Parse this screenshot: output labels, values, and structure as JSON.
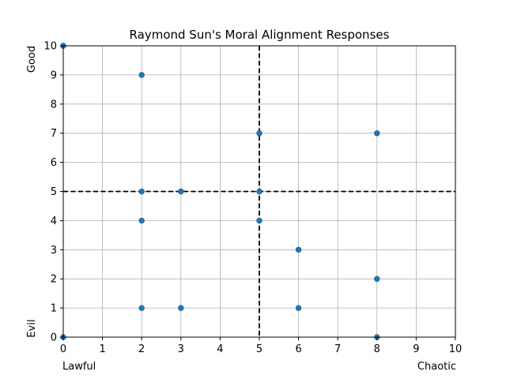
{
  "chart_data": {
    "type": "scatter",
    "title": "Raymond Sun's Moral Alignment Responses",
    "xlabel_left": "Lawful",
    "xlabel_right": "Chaotic",
    "ylabel_top": "Good",
    "ylabel_bottom": "Evil",
    "xlim": [
      0,
      10
    ],
    "ylim": [
      0,
      10
    ],
    "xticks": [
      "0",
      "1",
      "2",
      "3",
      "4",
      "5",
      "6",
      "7",
      "8",
      "9",
      "10"
    ],
    "yticks": [
      "0",
      "1",
      "2",
      "3",
      "4",
      "5",
      "6",
      "7",
      "8",
      "9",
      "10"
    ],
    "grid": true,
    "reference_lines": {
      "x": 5,
      "y": 5,
      "style": "dashed",
      "color": "#000000"
    },
    "marker_color": "#1f77b4",
    "points": [
      {
        "x": 0,
        "y": 10
      },
      {
        "x": 2,
        "y": 9
      },
      {
        "x": 5,
        "y": 7
      },
      {
        "x": 8,
        "y": 7
      },
      {
        "x": 2,
        "y": 5
      },
      {
        "x": 3,
        "y": 5
      },
      {
        "x": 5,
        "y": 5
      },
      {
        "x": 2,
        "y": 4
      },
      {
        "x": 5,
        "y": 4
      },
      {
        "x": 6,
        "y": 3
      },
      {
        "x": 8,
        "y": 2
      },
      {
        "x": 2,
        "y": 1
      },
      {
        "x": 3,
        "y": 1
      },
      {
        "x": 6,
        "y": 1
      },
      {
        "x": 0,
        "y": 0
      },
      {
        "x": 8,
        "y": 0
      }
    ]
  }
}
